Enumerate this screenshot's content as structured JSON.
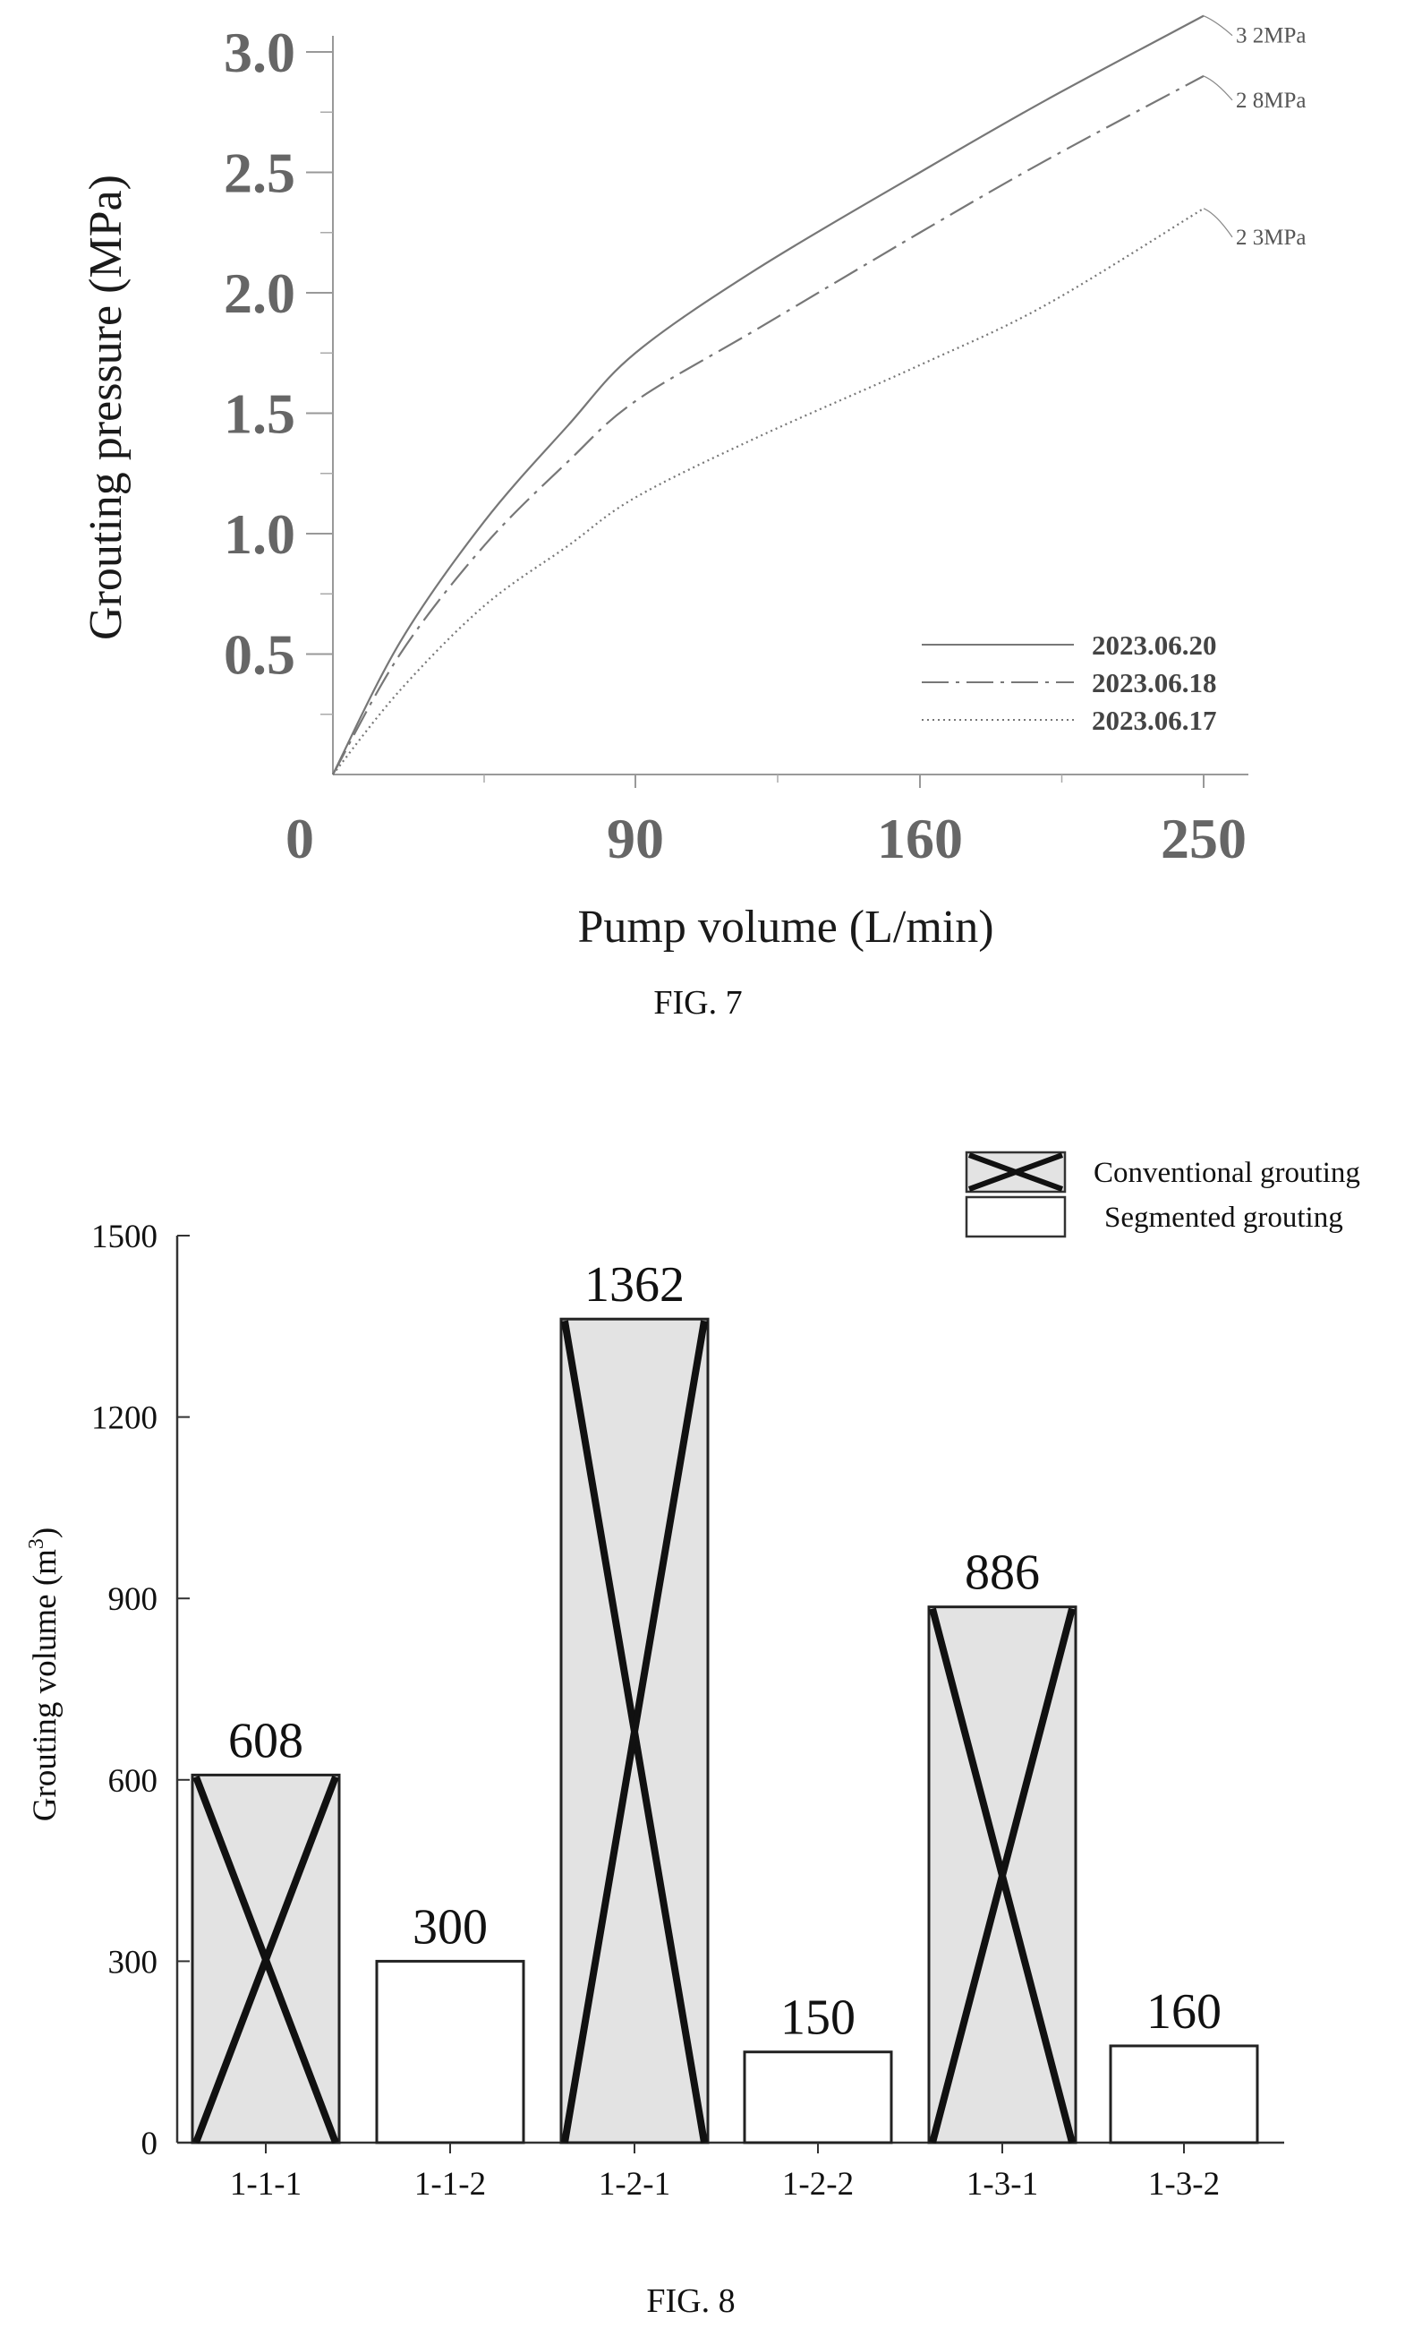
{
  "chart_data": [
    {
      "type": "line",
      "caption": "FIG. 7",
      "xlabel": "Pump volume (L/min)",
      "ylabel": "Grouting pressure (MPa)",
      "x_ticks": [
        "0",
        "90",
        "160",
        "250"
      ],
      "y_ticks": [
        "0.5",
        "1.0",
        "1.5",
        "2.0",
        "2.5",
        "3.0"
      ],
      "ylim": [
        0,
        3.0
      ],
      "legend_position": "bottom-right",
      "series": [
        {
          "name": "2023.06.20",
          "style": "solid",
          "end_label": "3 2MPa",
          "points": [
            [
              0,
              0
            ],
            [
              20,
              0.55
            ],
            [
              45,
              1.05
            ],
            [
              70,
              1.45
            ],
            [
              90,
              1.75
            ],
            [
              120,
              2.1
            ],
            [
              160,
              2.5
            ],
            [
              200,
              2.8
            ],
            [
              250,
              3.15
            ]
          ]
        },
        {
          "name": "2023.06.18",
          "style": "dashdot",
          "end_label": "2 8MPa",
          "points": [
            [
              0,
              0
            ],
            [
              20,
              0.5
            ],
            [
              45,
              0.95
            ],
            [
              70,
              1.3
            ],
            [
              90,
              1.55
            ],
            [
              120,
              1.85
            ],
            [
              160,
              2.25
            ],
            [
              200,
              2.55
            ],
            [
              250,
              2.9
            ]
          ]
        },
        {
          "name": "2023.06.17",
          "style": "dotted",
          "end_label": "2 3MPa",
          "points": [
            [
              0,
              0
            ],
            [
              20,
              0.35
            ],
            [
              45,
              0.7
            ],
            [
              70,
              0.95
            ],
            [
              90,
              1.15
            ],
            [
              120,
              1.4
            ],
            [
              160,
              1.7
            ],
            [
              200,
              1.95
            ],
            [
              250,
              2.35
            ]
          ]
        }
      ]
    },
    {
      "type": "bar",
      "caption": "FIG. 8",
      "xlabel": "",
      "ylabel_main": "Grouting volume (m",
      "ylabel_sup": "3",
      "ylabel_end": ")",
      "ylim": [
        0,
        1500
      ],
      "y_ticks": [
        "0",
        "300",
        "600",
        "900",
        "1200",
        "1500"
      ],
      "legend_position": "top-right",
      "legend": [
        {
          "name": "Conventional grouting",
          "style": "crossed"
        },
        {
          "name": "Segmented grouting",
          "style": "plain"
        }
      ],
      "categories": [
        "1-1-1",
        "1-1-2",
        "1-2-1",
        "1-2-2",
        "1-3-1",
        "1-3-2"
      ],
      "values": [
        608,
        300,
        1362,
        150,
        886,
        160
      ],
      "labels": [
        "608",
        "300",
        "1362",
        "150",
        "886",
        "160"
      ],
      "group": [
        "Conventional grouting",
        "Segmented grouting",
        "Conventional grouting",
        "Segmented grouting",
        "Conventional grouting",
        "Segmented grouting"
      ]
    }
  ]
}
